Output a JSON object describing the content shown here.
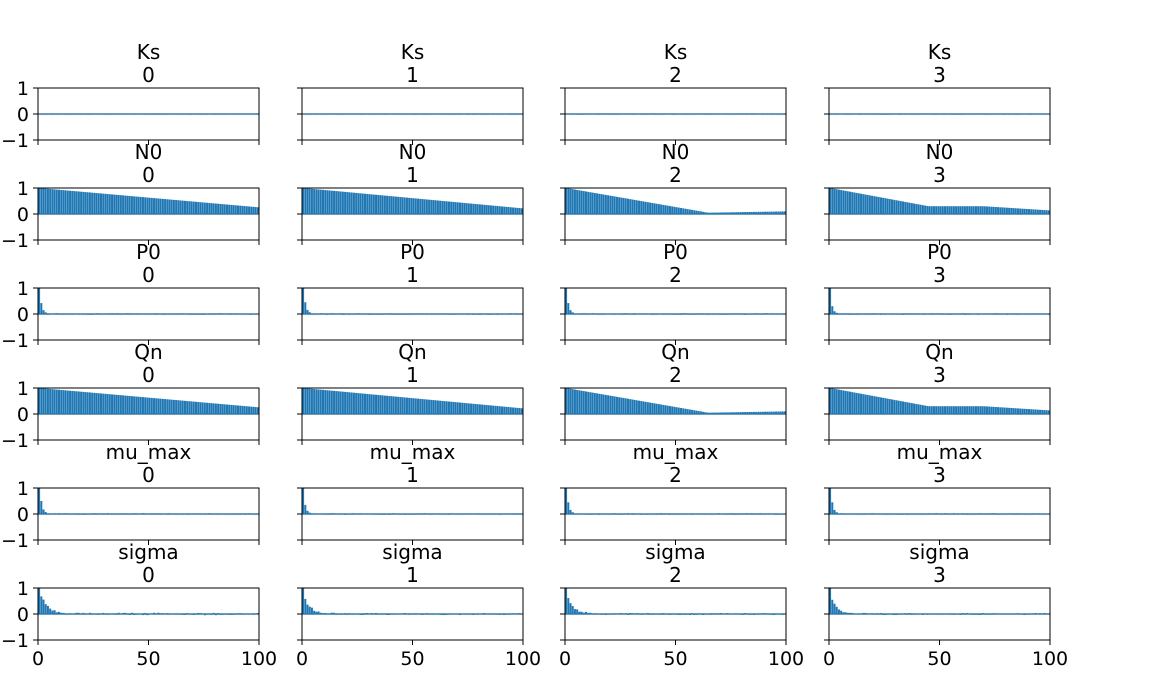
{
  "figure": {
    "background": "#ffffff",
    "bar_color": "#1f77b4",
    "band_color": "#c0c0c0"
  },
  "chart_data": {
    "type": "bar",
    "layout": "grid of autocorrelation subplots (6 rows x 4 chains)",
    "variables": [
      "Ks",
      "N0",
      "P0",
      "Qn",
      "mu_max",
      "sigma"
    ],
    "chains": [
      "0",
      "1",
      "2",
      "3"
    ],
    "x_ticks": [
      "0",
      "50",
      "100"
    ],
    "y_ticks": [
      "1",
      "0",
      "−1"
    ],
    "xlim": [
      0,
      100
    ],
    "ylim": [
      -1,
      1
    ],
    "grid": false,
    "shared_axes": true,
    "confidence_band": [
      -0.04,
      0.04
    ],
    "series": [
      {
        "variable": "Ks",
        "chain": "0",
        "profile": "noise",
        "lag0": 0.0,
        "amp": 0.02,
        "seed": 11
      },
      {
        "variable": "Ks",
        "chain": "1",
        "profile": "noise",
        "lag0": 0.0,
        "amp": 0.02,
        "seed": 12
      },
      {
        "variable": "Ks",
        "chain": "2",
        "profile": "noise",
        "lag0": 0.0,
        "amp": 0.025,
        "seed": 13
      },
      {
        "variable": "Ks",
        "chain": "3",
        "profile": "noise",
        "lag0": 0.0,
        "amp": 0.02,
        "seed": 14
      },
      {
        "variable": "N0",
        "chain": "0",
        "profile": "linear",
        "end": 0.26,
        "amp": 0.0,
        "seed": 21
      },
      {
        "variable": "N0",
        "chain": "1",
        "profile": "linear",
        "end": 0.22,
        "amp": 0.0,
        "seed": 22
      },
      {
        "variable": "N0",
        "chain": "2",
        "profile": "dip",
        "mid": 0.05,
        "end": 0.1,
        "amp": 0.0,
        "seed": 23
      },
      {
        "variable": "N0",
        "chain": "3",
        "profile": "plateau",
        "plateau": 0.3,
        "end": 0.14,
        "amp": 0.0,
        "seed": 24
      },
      {
        "variable": "P0",
        "chain": "0",
        "profile": "spike",
        "lag1": 0.42,
        "amp": 0.03,
        "seed": 31
      },
      {
        "variable": "P0",
        "chain": "1",
        "profile": "spike",
        "lag1": 0.45,
        "amp": 0.03,
        "seed": 32
      },
      {
        "variable": "P0",
        "chain": "2",
        "profile": "spike",
        "lag1": 0.42,
        "amp": 0.03,
        "seed": 33
      },
      {
        "variable": "P0",
        "chain": "3",
        "profile": "spike",
        "lag1": 0.3,
        "amp": 0.03,
        "seed": 34
      },
      {
        "variable": "Qn",
        "chain": "0",
        "profile": "linear",
        "end": 0.26,
        "amp": 0.0,
        "seed": 41
      },
      {
        "variable": "Qn",
        "chain": "1",
        "profile": "linear",
        "end": 0.22,
        "amp": 0.0,
        "seed": 42
      },
      {
        "variable": "Qn",
        "chain": "2",
        "profile": "dip",
        "mid": 0.05,
        "end": 0.1,
        "amp": 0.0,
        "seed": 43
      },
      {
        "variable": "Qn",
        "chain": "3",
        "profile": "plateau",
        "plateau": 0.3,
        "end": 0.14,
        "amp": 0.0,
        "seed": 44
      },
      {
        "variable": "mu_max",
        "chain": "0",
        "profile": "spike",
        "lag1": 0.5,
        "amp": 0.03,
        "seed": 51
      },
      {
        "variable": "mu_max",
        "chain": "1",
        "profile": "spike",
        "lag1": 0.35,
        "amp": 0.03,
        "seed": 52
      },
      {
        "variable": "mu_max",
        "chain": "2",
        "profile": "spike",
        "lag1": 0.45,
        "amp": 0.03,
        "seed": 53
      },
      {
        "variable": "mu_max",
        "chain": "3",
        "profile": "spike",
        "lag1": 0.45,
        "amp": 0.03,
        "seed": 54
      },
      {
        "variable": "sigma",
        "chain": "0",
        "profile": "decay",
        "lag1": 0.72,
        "amp": 0.05,
        "seed": 61
      },
      {
        "variable": "sigma",
        "chain": "1",
        "profile": "decay",
        "lag1": 0.55,
        "amp": 0.04,
        "seed": 62
      },
      {
        "variable": "sigma",
        "chain": "2",
        "profile": "decay",
        "lag1": 0.6,
        "amp": 0.04,
        "seed": 63
      },
      {
        "variable": "sigma",
        "chain": "3",
        "profile": "decay",
        "lag1": 0.55,
        "amp": 0.04,
        "seed": 64
      }
    ]
  }
}
